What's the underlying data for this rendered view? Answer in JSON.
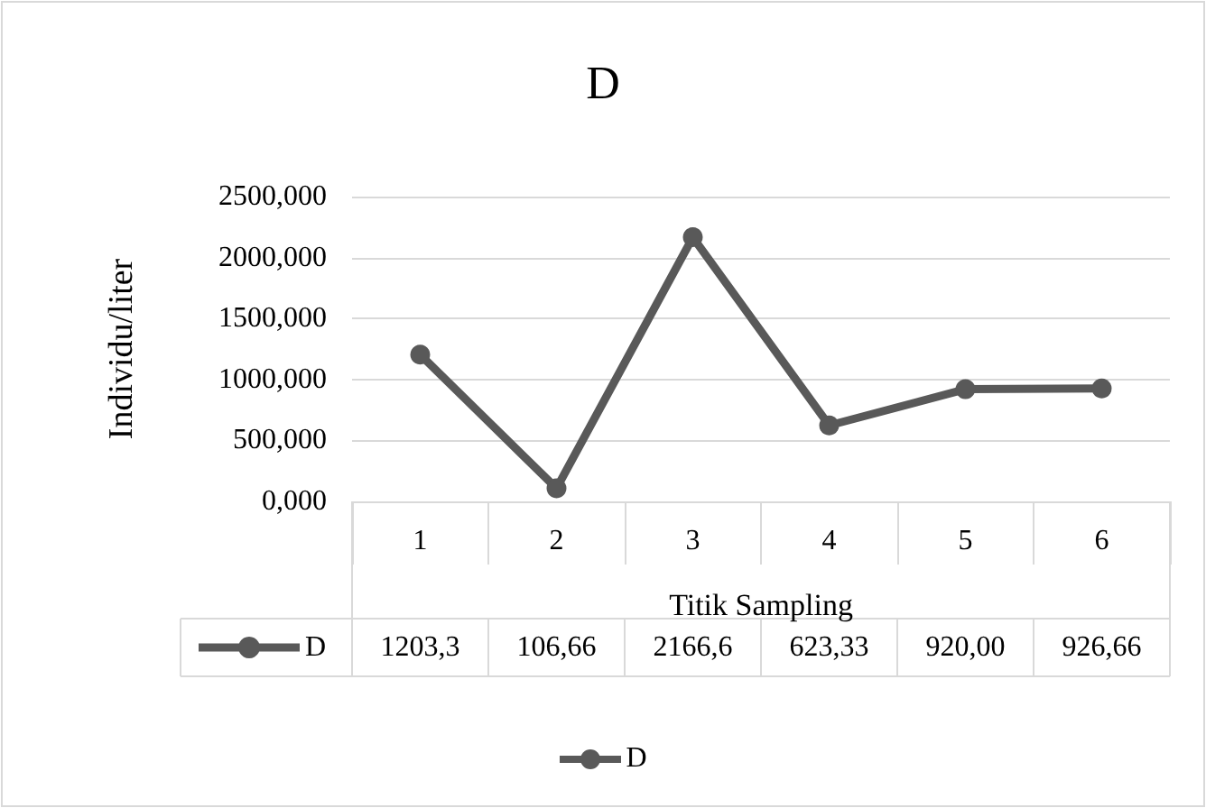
{
  "chart_data": {
    "type": "line",
    "title": "D",
    "xlabel": "Titik Sampling",
    "ylabel": "Individu/liter",
    "categories": [
      "1",
      "2",
      "3",
      "4",
      "5",
      "6"
    ],
    "series": [
      {
        "name": "D",
        "color": "#595959",
        "values": [
          1203.3,
          106.66,
          2166.6,
          623.33,
          920.0,
          926.66
        ],
        "value_labels": [
          "1203,3",
          "106,66",
          "2166,6",
          "623,33",
          "920,00",
          "926,66"
        ]
      }
    ],
    "ylim": [
      0,
      2500
    ],
    "yticks": [
      {
        "value": 0,
        "label": "0,000"
      },
      {
        "value": 500,
        "label": "500,000"
      },
      {
        "value": 1000,
        "label": "1000,000"
      },
      {
        "value": 1500,
        "label": "1500,000"
      },
      {
        "value": 2000,
        "label": "2000,000"
      },
      {
        "value": 2500,
        "label": "2500,000"
      }
    ],
    "grid": "y",
    "legend": "bottom",
    "marker": "circle",
    "line_style": "solid"
  }
}
